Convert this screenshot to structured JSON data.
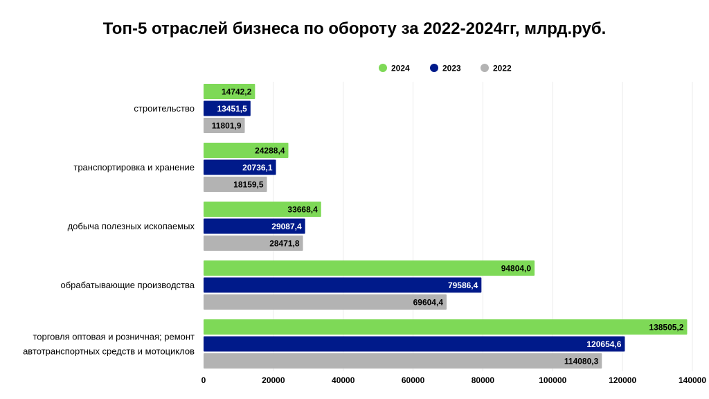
{
  "chart_data": {
    "type": "bar",
    "orientation": "horizontal",
    "title": "Топ-5 отраслей бизнеса по обороту за 2022-2024гг, млрд.руб.",
    "categories": [
      "строительство",
      "транспортировка и хранение",
      "добыча полезных ископаемых",
      "обрабатывающие производства",
      "торговля оптовая и розничная; ремонт автотранспортных средств и мотоциклов"
    ],
    "category_lines": [
      [
        "строительство"
      ],
      [
        "транспортировка и хранение"
      ],
      [
        "добыча полезных ископаемых"
      ],
      [
        "обрабатывающие производства"
      ],
      [
        "торговля оптовая и розничная; ремонт",
        "автотранспортных средств и мотоциклов"
      ]
    ],
    "series": [
      {
        "name": "2024",
        "color": "#7ed957",
        "label_color": "#000000",
        "values": [
          14742.2,
          24288.4,
          33668.4,
          94804.0,
          138505.2
        ],
        "labels": [
          "14742,2",
          "24288,4",
          "33668,4",
          "94804,0",
          "138505,2"
        ]
      },
      {
        "name": "2023",
        "color": "#001a8a",
        "label_color": "#ffffff",
        "values": [
          13451.5,
          20736.1,
          29087.4,
          79586.4,
          120654.6
        ],
        "labels": [
          "13451,5",
          "20736,1",
          "29087,4",
          "79586,4",
          "120654,6"
        ]
      },
      {
        "name": "2022",
        "color": "#b3b3b3",
        "label_color": "#000000",
        "values": [
          11801.9,
          18159.5,
          28471.8,
          69604.4,
          114080.3
        ],
        "labels": [
          "11801,9",
          "18159,5",
          "28471,8",
          "69604,4",
          "114080,3"
        ]
      }
    ],
    "xlim": [
      0,
      140000
    ],
    "xticks": [
      0,
      20000,
      40000,
      60000,
      80000,
      100000,
      120000,
      140000
    ],
    "grid": true,
    "legend_position": "top-right",
    "data_labels": true
  }
}
